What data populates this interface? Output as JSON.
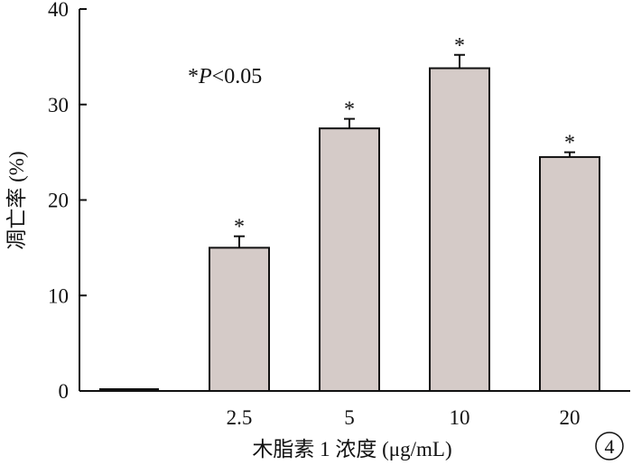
{
  "chart_data": {
    "type": "bar",
    "categories": [
      "",
      "2.5",
      "5",
      "10",
      "20"
    ],
    "values": [
      0.2,
      15.0,
      27.5,
      33.8,
      24.5
    ],
    "errors": [
      0,
      1.2,
      1.0,
      1.4,
      0.5
    ],
    "significance": [
      "",
      "*",
      "*",
      "*",
      "*"
    ],
    "xlabel": "木脂素 1 浓度 (μg/mL)",
    "ylabel": "凋亡率 (%)",
    "ylim": [
      0,
      40
    ],
    "yticks": [
      0,
      10,
      20,
      30,
      40
    ],
    "annotation": {
      "prefix": "*",
      "p_symbol": "P",
      "rest": "<0.05"
    },
    "panel_label": "4",
    "bar_color": "#d5cbc8",
    "edge_color": "#111111",
    "grid": false,
    "legend": "none"
  }
}
